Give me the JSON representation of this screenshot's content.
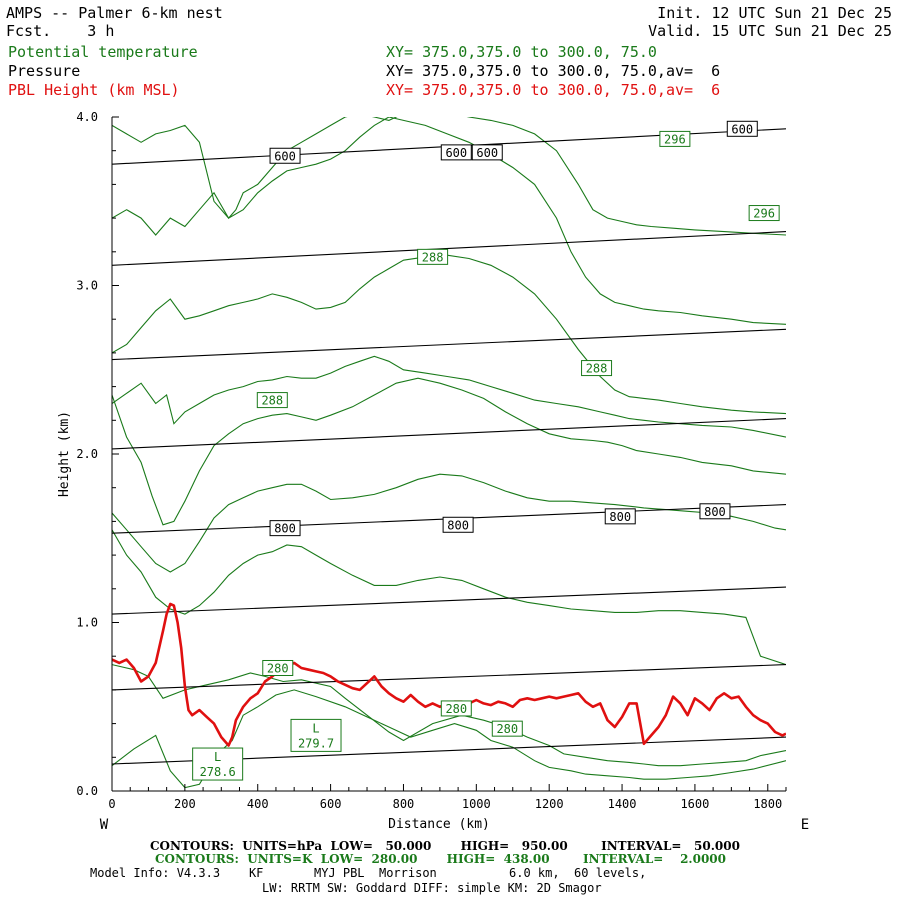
{
  "header": {
    "model_title": "AMPS -- Palmer 6-km nest",
    "forecast": "Fcst.    3 h",
    "init": "Init. 12 UTC Sun 21 Dec 25",
    "valid": "Valid. 15 UTC Sun 21 Dec 25",
    "field1": "Potential temperature",
    "field2": "Pressure",
    "field3": "PBL Height (km MSL)",
    "xy1": "XY= 375.0,375.0 to 300.0, 75.0",
    "xy2": "XY= 375.0,375.0 to 300.0, 75.0,av=  6",
    "xy3": "XY= 375.0,375.0 to 300.0, 75.0,av=  6"
  },
  "footer": {
    "contours_p": "CONTOURS:  UNITS=hPa  LOW=   50.000       HIGH=   950.00        INTERVAL=   50.000",
    "contours_t": "CONTOURS:  UNITS=K  LOW=  280.00       HIGH=  438.00        INTERVAL=    2.0000",
    "model_info": "Model Info: V4.3.3    KF       MYJ PBL  Morrison          6.0 km,  60 levels,",
    "model_info2": "LW: RRTM SW: Goddard DIFF: simple KM: 2D Smagor"
  },
  "colors": {
    "potential_temperature": "#1a7a1a",
    "pressure": "#000000",
    "pbl": "#e01010"
  },
  "chart_data": {
    "type": "line",
    "xlabel": "Distance (km)",
    "ylabel": "Height (km)",
    "xlim": [
      0,
      1850
    ],
    "ylim": [
      0,
      4
    ],
    "x_ticks": [
      "0",
      "200",
      "400",
      "600",
      "800",
      "1000",
      "1200",
      "1400",
      "1600",
      "1800"
    ],
    "y_ticks": [
      "0.0",
      "1.0",
      "2.0",
      "3.0",
      "4.0"
    ],
    "west_label": "W",
    "east_label": "E",
    "pressure_lines": [
      {
        "x": [
          0,
          1850
        ],
        "y": [
          3.72,
          3.93
        ]
      },
      {
        "x": [
          0,
          1850
        ],
        "y": [
          3.12,
          3.32
        ]
      },
      {
        "x": [
          0,
          1850
        ],
        "y": [
          2.56,
          2.74
        ]
      },
      {
        "x": [
          0,
          1850
        ],
        "y": [
          2.03,
          2.21
        ]
      },
      {
        "x": [
          0,
          1850
        ],
        "y": [
          1.53,
          1.7
        ]
      },
      {
        "x": [
          0,
          1850
        ],
        "y": [
          1.05,
          1.21
        ]
      },
      {
        "x": [
          0,
          1850
        ],
        "y": [
          0.6,
          0.75
        ]
      },
      {
        "x": [
          0,
          1850
        ],
        "y": [
          0.16,
          0.32
        ]
      }
    ],
    "pressure_labels": [
      {
        "text": "600",
        "x": 475,
        "y": 3.77
      },
      {
        "text": "600",
        "x": 945,
        "y": 3.79
      },
      {
        "text": "600",
        "x": 1030,
        "y": 3.79
      },
      {
        "text": "600",
        "x": 1730,
        "y": 3.93
      },
      {
        "text": "800",
        "x": 475,
        "y": 1.56
      },
      {
        "text": "800",
        "x": 950,
        "y": 1.58
      },
      {
        "text": "800",
        "x": 1395,
        "y": 1.63
      },
      {
        "text": "800",
        "x": 1655,
        "y": 1.66
      }
    ],
    "theta_lines": [
      {
        "x": [
          0,
          60,
          120,
          160,
          200,
          240,
          290,
          330,
          360,
          400,
          450,
          500,
          560,
          640,
          700,
          760,
          820,
          880,
          940,
          1000,
          1040,
          1100,
          1160,
          1200,
          1260,
          1300,
          1360,
          1420,
          1460,
          1520,
          1580,
          1640,
          1700,
          1760,
          1850
        ],
        "y": [
          0.15,
          0.25,
          0.33,
          0.12,
          0.02,
          0.04,
          0.22,
          0.3,
          0.45,
          0.5,
          0.57,
          0.6,
          0.56,
          0.5,
          0.44,
          0.38,
          0.32,
          0.36,
          0.4,
          0.36,
          0.3,
          0.26,
          0.18,
          0.14,
          0.12,
          0.1,
          0.09,
          0.08,
          0.07,
          0.07,
          0.08,
          0.09,
          0.11,
          0.13,
          0.18
        ]
      },
      {
        "x": [
          0,
          60,
          100,
          140,
          200,
          260,
          320,
          380,
          420,
          470,
          520,
          600,
          640,
          700,
          760,
          800,
          880,
          960,
          1020,
          1080,
          1140,
          1200,
          1240,
          1300,
          1360,
          1420,
          1460,
          1500,
          1560,
          1620,
          1680,
          1740,
          1780,
          1850
        ],
        "y": [
          0.75,
          0.72,
          0.68,
          0.55,
          0.6,
          0.63,
          0.66,
          0.7,
          0.68,
          0.65,
          0.66,
          0.62,
          0.55,
          0.45,
          0.35,
          0.3,
          0.4,
          0.45,
          0.42,
          0.38,
          0.32,
          0.27,
          0.22,
          0.2,
          0.18,
          0.17,
          0.16,
          0.15,
          0.15,
          0.16,
          0.17,
          0.18,
          0.21,
          0.24
        ]
      },
      {
        "x": [
          0,
          40,
          80,
          120,
          160,
          200,
          240,
          280,
          320,
          360,
          400,
          440,
          480,
          520,
          560,
          600,
          660,
          720,
          780,
          840,
          900,
          960,
          1020,
          1080,
          1140,
          1200,
          1260,
          1320,
          1380,
          1440,
          1500,
          1560,
          1620,
          1680,
          1740,
          1780,
          1850
        ],
        "y": [
          1.55,
          1.4,
          1.3,
          1.15,
          1.08,
          1.05,
          1.1,
          1.18,
          1.28,
          1.35,
          1.4,
          1.42,
          1.46,
          1.45,
          1.4,
          1.35,
          1.28,
          1.22,
          1.22,
          1.25,
          1.27,
          1.25,
          1.2,
          1.15,
          1.12,
          1.1,
          1.08,
          1.07,
          1.06,
          1.06,
          1.07,
          1.07,
          1.06,
          1.05,
          1.03,
          0.8,
          0.75
        ]
      },
      {
        "x": [
          0,
          40,
          80,
          120,
          160,
          200,
          240,
          280,
          320,
          360,
          400,
          440,
          480,
          520,
          560,
          600,
          660,
          720,
          780,
          840,
          900,
          960,
          1020,
          1080,
          1140,
          1200,
          1260,
          1320,
          1380,
          1420,
          1460,
          1520,
          1580,
          1640,
          1700,
          1760,
          1820,
          1850
        ],
        "y": [
          1.65,
          1.55,
          1.45,
          1.35,
          1.3,
          1.35,
          1.48,
          1.62,
          1.7,
          1.74,
          1.78,
          1.8,
          1.82,
          1.82,
          1.78,
          1.73,
          1.74,
          1.76,
          1.8,
          1.85,
          1.88,
          1.87,
          1.83,
          1.78,
          1.74,
          1.72,
          1.72,
          1.71,
          1.7,
          1.69,
          1.68,
          1.67,
          1.66,
          1.65,
          1.63,
          1.6,
          1.56,
          1.55
        ]
      },
      {
        "x": [
          0,
          40,
          80,
          110,
          140,
          170,
          200,
          240,
          280,
          320,
          360,
          400,
          440,
          480,
          520,
          560,
          600,
          660,
          720,
          780,
          840,
          900,
          960,
          1020,
          1080,
          1140,
          1200,
          1260,
          1320,
          1360,
          1400,
          1440,
          1500,
          1560,
          1620,
          1700,
          1760,
          1850
        ],
        "y": [
          2.35,
          2.1,
          1.95,
          1.75,
          1.58,
          1.6,
          1.72,
          1.9,
          2.05,
          2.12,
          2.18,
          2.21,
          2.23,
          2.24,
          2.22,
          2.2,
          2.23,
          2.28,
          2.35,
          2.42,
          2.45,
          2.42,
          2.38,
          2.33,
          2.25,
          2.18,
          2.12,
          2.09,
          2.08,
          2.07,
          2.05,
          2.02,
          2.0,
          1.98,
          1.95,
          1.93,
          1.9,
          1.88
        ]
      },
      {
        "x": [
          0,
          40,
          80,
          120,
          150,
          170,
          200,
          240,
          280,
          320,
          360,
          400,
          440,
          480,
          520,
          560,
          600,
          640,
          680,
          720,
          760,
          800,
          860,
          920,
          980,
          1040,
          1100,
          1160,
          1220,
          1280,
          1340,
          1380,
          1420,
          1460,
          1500,
          1560,
          1620,
          1700,
          1760,
          1850
        ],
        "y": [
          2.3,
          2.36,
          2.42,
          2.3,
          2.35,
          2.18,
          2.25,
          2.3,
          2.35,
          2.38,
          2.4,
          2.43,
          2.44,
          2.46,
          2.45,
          2.45,
          2.48,
          2.52,
          2.55,
          2.58,
          2.55,
          2.5,
          2.48,
          2.46,
          2.44,
          2.4,
          2.36,
          2.32,
          2.3,
          2.28,
          2.25,
          2.23,
          2.21,
          2.2,
          2.19,
          2.18,
          2.17,
          2.16,
          2.14,
          2.1
        ]
      },
      {
        "x": [
          0,
          40,
          80,
          120,
          160,
          200,
          240,
          280,
          320,
          360,
          400,
          440,
          480,
          520,
          560,
          600,
          640,
          680,
          720,
          760,
          800,
          860,
          920,
          980,
          1040,
          1100,
          1160,
          1220,
          1280,
          1340,
          1380,
          1420,
          1460,
          1500,
          1560,
          1620,
          1700,
          1760,
          1850
        ],
        "y": [
          2.6,
          2.65,
          2.75,
          2.85,
          2.92,
          2.8,
          2.82,
          2.85,
          2.88,
          2.9,
          2.92,
          2.95,
          2.93,
          2.9,
          2.86,
          2.87,
          2.9,
          2.98,
          3.05,
          3.1,
          3.15,
          3.17,
          3.18,
          3.16,
          3.12,
          3.05,
          2.95,
          2.8,
          2.62,
          2.46,
          2.38,
          2.34,
          2.33,
          2.32,
          2.3,
          2.28,
          2.26,
          2.25,
          2.24
        ]
      },
      {
        "x": [
          0,
          40,
          80,
          120,
          160,
          200,
          240,
          280,
          320,
          360,
          400,
          440,
          480,
          520,
          560,
          600,
          640,
          680,
          720,
          760,
          800,
          860,
          920,
          980,
          1040,
          1100,
          1160,
          1220,
          1260,
          1300,
          1340,
          1380,
          1420,
          1460,
          1500,
          1560,
          1620,
          1700,
          1760,
          1850
        ],
        "y": [
          3.4,
          3.45,
          3.4,
          3.3,
          3.4,
          3.35,
          3.45,
          3.55,
          3.4,
          3.45,
          3.55,
          3.62,
          3.68,
          3.7,
          3.72,
          3.75,
          3.8,
          3.88,
          3.95,
          4.0,
          3.98,
          3.95,
          3.9,
          3.85,
          3.78,
          3.7,
          3.6,
          3.4,
          3.2,
          3.05,
          2.95,
          2.9,
          2.88,
          2.86,
          2.85,
          2.84,
          2.82,
          2.8,
          2.78,
          2.77
        ]
      },
      {
        "x": [
          0,
          40,
          80,
          120,
          160,
          200,
          240,
          280,
          320,
          340,
          360,
          400,
          440,
          480,
          520,
          560,
          600,
          640,
          680,
          720,
          760,
          800,
          860,
          920,
          980,
          1040,
          1100,
          1160,
          1220,
          1280,
          1320,
          1360,
          1400,
          1440,
          1480,
          1540,
          1600,
          1680,
          1760,
          1850
        ],
        "y": [
          3.95,
          3.9,
          3.85,
          3.9,
          3.92,
          3.95,
          3.85,
          3.5,
          3.4,
          3.45,
          3.55,
          3.6,
          3.7,
          3.8,
          3.85,
          3.9,
          3.95,
          4.0,
          4.02,
          4.0,
          3.98,
          4.02,
          4.05,
          4.03,
          4.0,
          3.98,
          3.95,
          3.9,
          3.8,
          3.6,
          3.45,
          3.4,
          3.38,
          3.36,
          3.35,
          3.34,
          3.33,
          3.32,
          3.31,
          3.3
        ]
      }
    ],
    "theta_labels": [
      {
        "text": "296",
        "x": 1545,
        "y": 3.87
      },
      {
        "text": "296",
        "x": 1790,
        "y": 3.43
      },
      {
        "text": "288",
        "x": 880,
        "y": 3.17
      },
      {
        "text": "288",
        "x": 1330,
        "y": 2.51
      },
      {
        "text": "288",
        "x": 440,
        "y": 2.32
      },
      {
        "text": "280",
        "x": 455,
        "y": 0.73
      },
      {
        "text": "280",
        "x": 945,
        "y": 0.49
      },
      {
        "text": "280",
        "x": 1085,
        "y": 0.37
      }
    ],
    "low_centers": [
      {
        "letter": "L",
        "value": "279.7",
        "x": 560,
        "y": 0.33
      },
      {
        "letter": "L",
        "value": "278.6",
        "x": 290,
        "y": 0.16
      }
    ],
    "pbl_height": {
      "name": "PBL Height (km MSL)",
      "x": [
        0,
        20,
        40,
        60,
        80,
        100,
        120,
        140,
        150,
        160,
        170,
        180,
        190,
        200,
        210,
        220,
        240,
        260,
        280,
        300,
        320,
        330,
        340,
        360,
        380,
        400,
        420,
        440,
        460,
        480,
        500,
        520,
        540,
        560,
        580,
        600,
        620,
        640,
        660,
        680,
        700,
        710,
        720,
        740,
        760,
        780,
        800,
        820,
        840,
        860,
        880,
        900,
        920,
        940,
        960,
        980,
        1000,
        1020,
        1040,
        1060,
        1080,
        1100,
        1120,
        1140,
        1160,
        1180,
        1200,
        1220,
        1240,
        1260,
        1280,
        1300,
        1320,
        1340,
        1360,
        1380,
        1400,
        1420,
        1440,
        1460,
        1480,
        1500,
        1520,
        1540,
        1560,
        1580,
        1600,
        1620,
        1640,
        1660,
        1680,
        1700,
        1720,
        1740,
        1760,
        1780,
        1800,
        1820,
        1840,
        1850
      ],
      "y": [
        0.78,
        0.76,
        0.78,
        0.73,
        0.65,
        0.68,
        0.76,
        0.95,
        1.05,
        1.11,
        1.1,
        1.0,
        0.85,
        0.62,
        0.48,
        0.45,
        0.48,
        0.44,
        0.4,
        0.32,
        0.27,
        0.32,
        0.42,
        0.5,
        0.55,
        0.58,
        0.65,
        0.68,
        0.72,
        0.74,
        0.76,
        0.73,
        0.72,
        0.71,
        0.7,
        0.68,
        0.65,
        0.63,
        0.61,
        0.6,
        0.64,
        0.66,
        0.68,
        0.62,
        0.58,
        0.55,
        0.53,
        0.57,
        0.53,
        0.5,
        0.52,
        0.5,
        0.52,
        0.53,
        0.53,
        0.52,
        0.54,
        0.52,
        0.51,
        0.53,
        0.52,
        0.5,
        0.54,
        0.55,
        0.54,
        0.55,
        0.56,
        0.55,
        0.56,
        0.57,
        0.58,
        0.53,
        0.5,
        0.52,
        0.42,
        0.38,
        0.44,
        0.52,
        0.52,
        0.28,
        0.33,
        0.38,
        0.45,
        0.56,
        0.52,
        0.45,
        0.55,
        0.52,
        0.48,
        0.55,
        0.58,
        0.55,
        0.56,
        0.5,
        0.45,
        0.42,
        0.4,
        0.35,
        0.33,
        0.34
      ]
    }
  }
}
